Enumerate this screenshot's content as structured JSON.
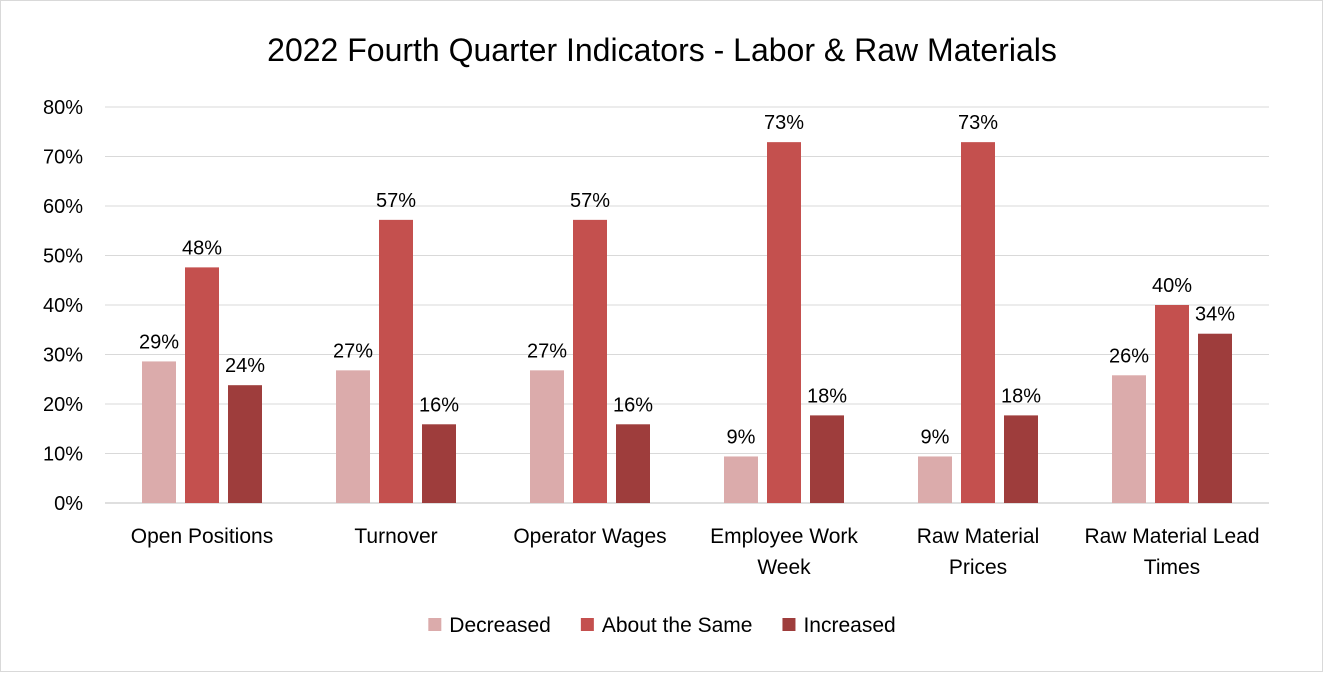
{
  "chart_data": {
    "type": "bar",
    "title": "2022 Fourth Quarter Indicators - Labor & Raw Materials",
    "xlabel": "",
    "ylabel": "",
    "ylim": [
      0,
      80
    ],
    "y_ticks": [
      "0%",
      "10%",
      "20%",
      "30%",
      "40%",
      "50%",
      "60%",
      "70%",
      "80%"
    ],
    "categories": [
      [
        "Open Positions"
      ],
      [
        "Turnover"
      ],
      [
        "Operator Wages"
      ],
      [
        "Employee Work",
        "Week"
      ],
      [
        "Raw Material",
        "Prices"
      ],
      [
        "Raw Material Lead",
        "Times"
      ]
    ],
    "series": [
      {
        "name": "Decreased",
        "color": "#dbabab",
        "values": [
          28.6,
          26.8,
          26.8,
          9.4,
          9.4,
          25.8
        ],
        "labels": [
          "29%",
          "27%",
          "27%",
          "9%",
          "9%",
          "26%"
        ]
      },
      {
        "name": "About the Same",
        "color": "#c4504e",
        "values": [
          47.6,
          57.2,
          57.2,
          72.9,
          72.9,
          40.0
        ],
        "labels": [
          "48%",
          "57%",
          "57%",
          "73%",
          "73%",
          "40%"
        ]
      },
      {
        "name": "Increased",
        "color": "#9e3d3c",
        "values": [
          23.8,
          15.9,
          15.9,
          17.7,
          17.7,
          34.2
        ],
        "labels": [
          "24%",
          "16%",
          "16%",
          "18%",
          "18%",
          "34%"
        ]
      }
    ],
    "grid": true,
    "legend_position": "bottom"
  }
}
